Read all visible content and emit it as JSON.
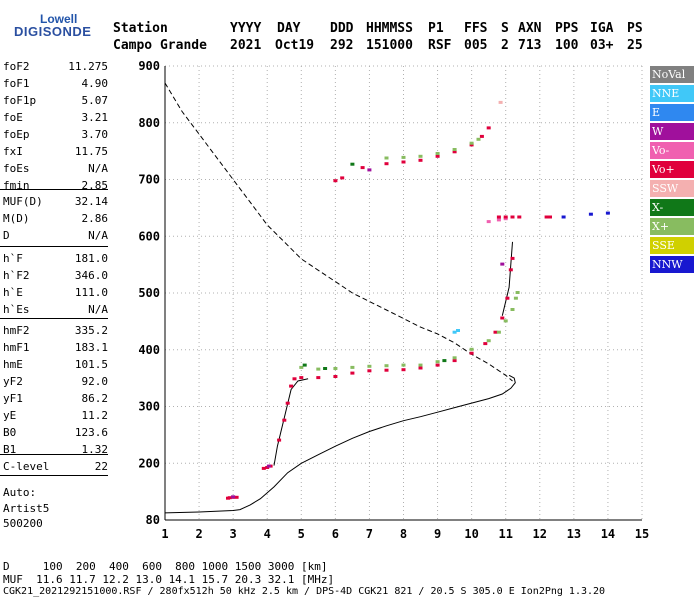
{
  "logo": {
    "line1": "Lowell",
    "line2": "DIGISONDE"
  },
  "header": {
    "labels": [
      "Station",
      "YYYY",
      "DAY",
      "DDD",
      "HHMMSS",
      "P1",
      "FFS",
      "S",
      "AXN",
      "PPS",
      "IGA",
      "PS"
    ],
    "values": [
      "Campo Grande",
      "2021",
      "Oct19",
      "292",
      "151000",
      "RSF",
      "005",
      "2",
      "713",
      "100",
      "03+",
      "25"
    ]
  },
  "params": [
    {
      "name": "foF2",
      "value": "11.275"
    },
    {
      "name": "foF1",
      "value": "4.90"
    },
    {
      "name": "foF1p",
      "value": "5.07"
    },
    {
      "name": "foE",
      "value": "3.21"
    },
    {
      "name": "foEp",
      "value": "3.70"
    },
    {
      "name": "fxI",
      "value": "11.75"
    },
    {
      "name": "foEs",
      "value": "N/A"
    },
    {
      "name": "fmin",
      "value": "2.85"
    },
    {
      "name": "MUF(D)",
      "value": "32.14"
    },
    {
      "name": "M(D)",
      "value": "2.86"
    },
    {
      "name": "D",
      "value": "N/A"
    },
    {
      "name": "h`F",
      "value": "181.0"
    },
    {
      "name": "h`F2",
      "value": "346.0"
    },
    {
      "name": "h`E",
      "value": "111.0"
    },
    {
      "name": "h`Es",
      "value": "N/A"
    },
    {
      "name": "hmF2",
      "value": "335.2"
    },
    {
      "name": "hmF1",
      "value": "183.1"
    },
    {
      "name": "hmE",
      "value": "101.5"
    },
    {
      "name": "yF2",
      "value": "92.0"
    },
    {
      "name": "yF1",
      "value": "86.2"
    },
    {
      "name": "yE",
      "value": "11.2"
    },
    {
      "name": "B0",
      "value": "123.6"
    },
    {
      "name": "B1",
      "value": "1.32"
    },
    {
      "name": "C-level",
      "value": "22"
    }
  ],
  "auto": {
    "line1": "Auto:",
    "line2": "Artist5",
    "line3": "500200"
  },
  "legend": [
    {
      "label": "NoVal",
      "color": "#808080"
    },
    {
      "label": "NNE",
      "color": "#40c8f8"
    },
    {
      "label": "E",
      "color": "#2f88f0"
    },
    {
      "label": "W",
      "color": "#a0109c"
    },
    {
      "label": "Vo-",
      "color": "#f060b0"
    },
    {
      "label": "Vo+",
      "color": "#e0003c"
    },
    {
      "label": "SSW",
      "color": "#f4b0b0"
    },
    {
      "label": "X-",
      "color": "#107818"
    },
    {
      "label": "X+",
      "color": "#88bc60"
    },
    {
      "label": "SSE",
      "color": "#d0d000"
    },
    {
      "label": "NNW",
      "color": "#1818d0"
    }
  ],
  "footer": {
    "d_line": "D     100  200  400  600  800 1000 1500 3000 [km]",
    "muf_line": "MUF  11.6 11.7 12.2 13.0 14.1 15.7 20.3 32.1 [MHz]",
    "file_line": "CGK21_2021292151000.RSF / 280fx512h 50 kHz 2.5 km / DPS-4D CGK21 821 / 20.5 S 305.0 E Ion2Png 1.3.20"
  },
  "chart_data": {
    "type": "scatter",
    "xlim": [
      1,
      15
    ],
    "ylim": [
      80,
      900
    ],
    "x_ticks": [
      1,
      2,
      3,
      4,
      5,
      6,
      7,
      8,
      9,
      10,
      11,
      12,
      13,
      14,
      15
    ],
    "y_ticks": [
      80,
      200,
      300,
      400,
      500,
      600,
      700,
      800,
      900
    ],
    "grid": true,
    "echoes": [
      {
        "series": "Vo+",
        "color": "#e0003c",
        "points": [
          [
            2.85,
            125
          ],
          [
            2.9,
            126
          ],
          [
            3.0,
            127
          ],
          [
            3.1,
            127
          ],
          [
            3.9,
            188
          ],
          [
            4.0,
            190
          ],
          [
            4.1,
            193
          ],
          [
            4.35,
            240
          ],
          [
            4.5,
            275
          ],
          [
            4.6,
            305
          ],
          [
            4.7,
            335
          ],
          [
            4.8,
            348
          ],
          [
            5.0,
            350
          ],
          [
            5.5,
            350
          ],
          [
            6.0,
            352
          ],
          [
            6.5,
            358
          ],
          [
            7.0,
            362
          ],
          [
            7.5,
            363
          ],
          [
            8.0,
            364
          ],
          [
            8.5,
            367
          ],
          [
            9.0,
            372
          ],
          [
            9.5,
            380
          ],
          [
            10.0,
            393
          ],
          [
            10.4,
            410
          ],
          [
            10.7,
            430
          ],
          [
            10.9,
            455
          ],
          [
            11.05,
            490
          ],
          [
            11.15,
            540
          ],
          [
            11.2,
            560
          ],
          [
            6.0,
            697
          ],
          [
            6.2,
            702
          ],
          [
            6.8,
            720
          ],
          [
            7.5,
            727
          ],
          [
            8.0,
            730
          ],
          [
            8.5,
            733
          ],
          [
            9.0,
            740
          ],
          [
            9.5,
            748
          ],
          [
            10.0,
            760
          ],
          [
            10.3,
            775
          ],
          [
            10.5,
            790
          ]
        ]
      },
      {
        "series": "X+",
        "color": "#88bc60",
        "points": [
          [
            5.0,
            368
          ],
          [
            5.5,
            365
          ],
          [
            6.0,
            366
          ],
          [
            6.5,
            368
          ],
          [
            7.0,
            370
          ],
          [
            7.5,
            371
          ],
          [
            8.0,
            372
          ],
          [
            8.5,
            372
          ],
          [
            9.0,
            378
          ],
          [
            9.5,
            385
          ],
          [
            10.0,
            400
          ],
          [
            10.5,
            415
          ],
          [
            10.8,
            430
          ],
          [
            11.0,
            450
          ],
          [
            11.2,
            470
          ],
          [
            11.3,
            490
          ],
          [
            11.35,
            500
          ],
          [
            7.5,
            737
          ],
          [
            8.0,
            738
          ],
          [
            8.5,
            740
          ],
          [
            9.0,
            745
          ],
          [
            9.5,
            752
          ],
          [
            10.0,
            763
          ],
          [
            10.2,
            770
          ]
        ]
      },
      {
        "series": "X-",
        "color": "#107818",
        "points": [
          [
            5.1,
            372
          ],
          [
            5.7,
            366
          ],
          [
            9.2,
            380
          ],
          [
            6.5,
            726
          ]
        ]
      },
      {
        "series": "W",
        "color": "#a0109c",
        "points": [
          [
            3.0,
            128
          ],
          [
            4.05,
            193
          ],
          [
            7.0,
            716
          ],
          [
            10.9,
            550
          ]
        ]
      },
      {
        "series": "NNE",
        "color": "#40c8f8",
        "points": [
          [
            9.5,
            430
          ],
          [
            9.6,
            433
          ]
        ]
      },
      {
        "series": "Vo-",
        "color": "#f060b0",
        "points": [
          [
            10.5,
            625
          ],
          [
            10.8,
            628
          ],
          [
            11.0,
            630
          ]
        ]
      },
      {
        "series": "SSW",
        "color": "#f4b0b0",
        "points": [
          [
            10.85,
            835
          ]
        ]
      },
      {
        "series": "Oblique",
        "color": "#e0003c",
        "points": [
          [
            10.8,
            633
          ],
          [
            11.0,
            633
          ],
          [
            11.2,
            633
          ],
          [
            11.4,
            633
          ],
          [
            12.2,
            633
          ],
          [
            12.3,
            633
          ]
        ]
      },
      {
        "series": "NNW",
        "color": "#1818d0",
        "points": [
          [
            12.7,
            633
          ],
          [
            13.5,
            638
          ],
          [
            14.0,
            640
          ]
        ]
      }
    ],
    "profile_curve": [
      [
        1,
        95
      ],
      [
        2,
        97
      ],
      [
        3,
        100
      ],
      [
        3.2,
        102
      ],
      [
        3.5,
        112
      ],
      [
        3.8,
        125
      ],
      [
        4.2,
        150
      ],
      [
        4.6,
        180
      ],
      [
        5.0,
        200
      ],
      [
        5.5,
        215
      ],
      [
        6.0,
        230
      ],
      [
        6.5,
        244
      ],
      [
        7.0,
        256
      ],
      [
        7.5,
        266
      ],
      [
        8.0,
        275
      ],
      [
        8.5,
        282
      ],
      [
        9.0,
        290
      ],
      [
        9.5,
        298
      ],
      [
        10.0,
        306
      ],
      [
        10.5,
        314
      ],
      [
        10.9,
        322
      ],
      [
        11.15,
        332
      ],
      [
        11.28,
        342
      ],
      [
        11.25,
        350
      ],
      [
        11.1,
        355
      ]
    ],
    "trace_curve": [
      [
        4.2,
        195
      ],
      [
        4.3,
        230
      ],
      [
        4.5,
        280
      ],
      [
        4.7,
        330
      ],
      [
        4.9,
        345
      ],
      [
        5.2,
        349
      ]
    ],
    "f2_trace": [
      [
        10.9,
        460
      ],
      [
        11.1,
        510
      ],
      [
        11.2,
        590
      ]
    ],
    "model_curve": [
      [
        1.0,
        870
      ],
      [
        1.5,
        820
      ],
      [
        2.0,
        780
      ],
      [
        2.5,
        740
      ],
      [
        3.0,
        700
      ],
      [
        3.5,
        660
      ],
      [
        4.0,
        620
      ],
      [
        4.5,
        590
      ],
      [
        5.0,
        560
      ],
      [
        5.5,
        540
      ],
      [
        6.0,
        520
      ],
      [
        6.5,
        500
      ],
      [
        7.0,
        485
      ],
      [
        7.5,
        470
      ],
      [
        8.0,
        455
      ],
      [
        8.5,
        440
      ],
      [
        9.0,
        428
      ],
      [
        9.5,
        412
      ],
      [
        10.0,
        392
      ],
      [
        10.5,
        375
      ],
      [
        11.0,
        355
      ],
      [
        11.2,
        345
      ]
    ]
  }
}
